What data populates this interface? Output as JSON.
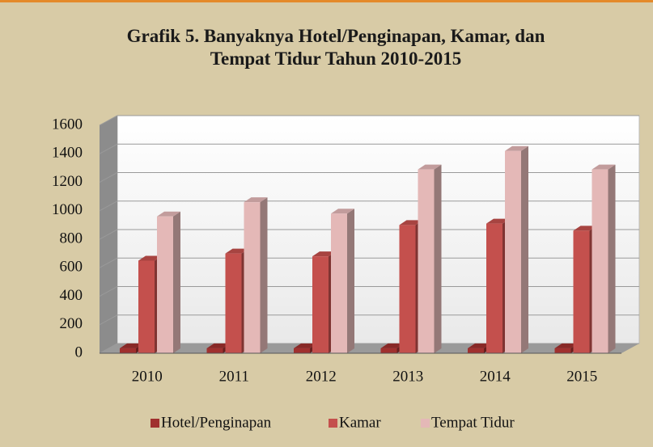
{
  "chart_data": {
    "type": "bar3d",
    "title": "Grafik 5. Banyaknya Hotel/Penginapan, Kamar, dan Tempat Tidur Tahun 2010-2015",
    "categories": [
      "2010",
      "2011",
      "2012",
      "2013",
      "2014",
      "2015"
    ],
    "series": [
      {
        "name": "Hotel/Penginapan",
        "color": "#a0302e",
        "values": [
          35,
          35,
          35,
          35,
          35,
          35
        ]
      },
      {
        "name": "Kamar",
        "color": "#c4504d",
        "values": [
          650,
          700,
          680,
          900,
          910,
          860
        ]
      },
      {
        "name": "Tempat Tidur",
        "color": "#e4b8b7",
        "values": [
          960,
          1060,
          980,
          1290,
          1420,
          1290
        ]
      }
    ],
    "ylim": [
      0,
      1600
    ],
    "yticks": [
      0,
      200,
      400,
      600,
      800,
      1000,
      1200,
      1400,
      1600
    ],
    "grid": true,
    "legend": "bottom"
  }
}
